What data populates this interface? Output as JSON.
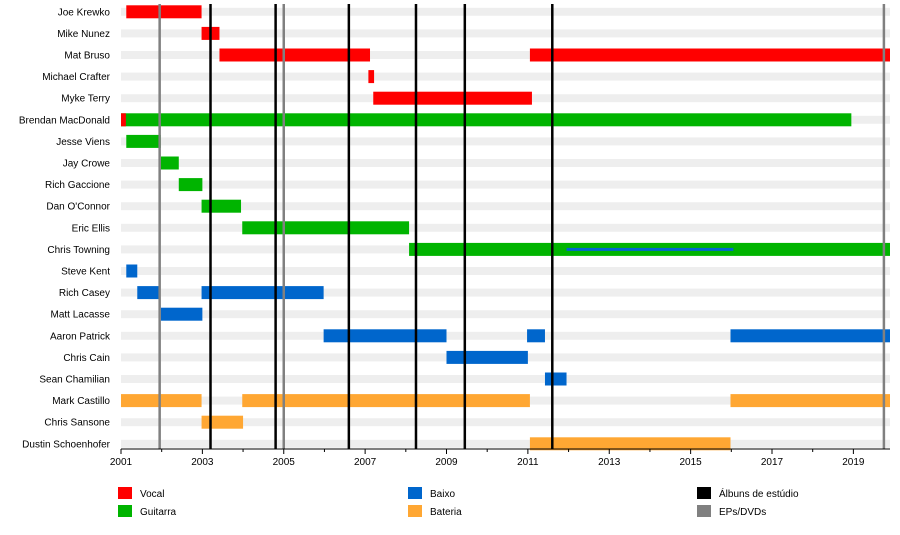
{
  "chart_data": {
    "type": "timeline",
    "x_domain": [
      2001.0,
      2019.9
    ],
    "x_ticks": [
      "2001",
      "2003",
      "2005",
      "2007",
      "2009",
      "2011",
      "2013",
      "2015",
      "2017",
      "2019"
    ],
    "colors": {
      "Vocal": "#ff0000",
      "Guitarra": "#00b400",
      "Baixo": "#0066cc",
      "Bateria": "#ffa733",
      "album_line": "#000000",
      "ep_line": "#808080",
      "row_stripe": "#eeeeee"
    },
    "members": [
      "Joe Krewko",
      "Mike Nunez",
      "Mat Bruso",
      "Michael Crafter",
      "Myke Terry",
      "Brendan MacDonald",
      "Jesse Viens",
      "Jay Crowe",
      "Rich Gaccione",
      "Dan O'Connor",
      "Eric Ellis",
      "Chris Towning",
      "Steve Kent",
      "Rich Casey",
      "Matt Lacasse",
      "Aaron Patrick",
      "Chris Cain",
      "Sean Chamilian",
      "Mark Castillo",
      "Chris Sansone",
      "Dustin Schoenhofer"
    ],
    "bars": [
      {
        "member": 0,
        "role": "Vocal",
        "start": 2001.13,
        "end": 2002.98
      },
      {
        "member": 1,
        "role": "Vocal",
        "start": 2002.98,
        "end": 2003.42
      },
      {
        "member": 2,
        "role": "Vocal",
        "start": 2003.42,
        "end": 2007.12
      },
      {
        "member": 2,
        "role": "Vocal",
        "start": 2011.05,
        "end": 2019.9
      },
      {
        "member": 3,
        "role": "Vocal",
        "start": 2007.08,
        "end": 2007.22
      },
      {
        "member": 4,
        "role": "Vocal",
        "start": 2007.2,
        "end": 2011.1
      },
      {
        "member": 5,
        "role": "Guitarra",
        "start": 2001.0,
        "end": 2018.95
      },
      {
        "member": 5,
        "role": "Vocal",
        "start": 2001.0,
        "end": 2001.12
      },
      {
        "member": 6,
        "role": "Guitarra",
        "start": 2001.13,
        "end": 2001.98
      },
      {
        "member": 7,
        "role": "Guitarra",
        "start": 2001.98,
        "end": 2002.42
      },
      {
        "member": 8,
        "role": "Guitarra",
        "start": 2002.42,
        "end": 2003.0
      },
      {
        "member": 9,
        "role": "Guitarra",
        "start": 2002.98,
        "end": 2003.95
      },
      {
        "member": 10,
        "role": "Guitarra",
        "start": 2003.98,
        "end": 2008.08
      },
      {
        "member": 11,
        "role": "Guitarra",
        "start": 2008.08,
        "end": 2019.9
      },
      {
        "member": 11,
        "role": "Baixo",
        "start": 2011.95,
        "end": 2016.05,
        "thin": true
      },
      {
        "member": 12,
        "role": "Baixo",
        "start": 2001.13,
        "end": 2001.4
      },
      {
        "member": 13,
        "role": "Baixo",
        "start": 2001.4,
        "end": 2001.95
      },
      {
        "member": 13,
        "role": "Baixo",
        "start": 2002.98,
        "end": 2005.98
      },
      {
        "member": 14,
        "role": "Baixo",
        "start": 2001.98,
        "end": 2003.0
      },
      {
        "member": 15,
        "role": "Baixo",
        "start": 2005.98,
        "end": 2009.0
      },
      {
        "member": 15,
        "role": "Baixo",
        "start": 2010.98,
        "end": 2011.42
      },
      {
        "member": 15,
        "role": "Baixo",
        "start": 2015.98,
        "end": 2019.9
      },
      {
        "member": 16,
        "role": "Baixo",
        "start": 2009.0,
        "end": 2011.0
      },
      {
        "member": 17,
        "role": "Baixo",
        "start": 2011.42,
        "end": 2011.95
      },
      {
        "member": 18,
        "role": "Bateria",
        "start": 2001.0,
        "end": 2002.98
      },
      {
        "member": 18,
        "role": "Bateria",
        "start": 2003.98,
        "end": 2011.05
      },
      {
        "member": 18,
        "role": "Bateria",
        "start": 2015.98,
        "end": 2019.9
      },
      {
        "member": 19,
        "role": "Bateria",
        "start": 2002.98,
        "end": 2004.0
      },
      {
        "member": 20,
        "role": "Bateria",
        "start": 2011.05,
        "end": 2015.98
      }
    ],
    "album_lines": [
      2003.2,
      2004.8,
      2006.6,
      2008.25,
      2009.45,
      2011.6
    ],
    "ep_lines": [
      2001.95,
      2005.0,
      2019.75
    ],
    "legend": [
      {
        "label": "Vocal",
        "key": "Vocal",
        "kind": "bar"
      },
      {
        "label": "Guitarra",
        "key": "Guitarra",
        "kind": "bar"
      },
      {
        "label": "Baixo",
        "key": "Baixo",
        "kind": "bar"
      },
      {
        "label": "Bateria",
        "key": "Bateria",
        "kind": "bar"
      },
      {
        "label": "Álbuns de estúdio",
        "key": "album_line",
        "kind": "line"
      },
      {
        "label": "EPs/DVDs",
        "key": "ep_line",
        "kind": "line"
      }
    ]
  }
}
